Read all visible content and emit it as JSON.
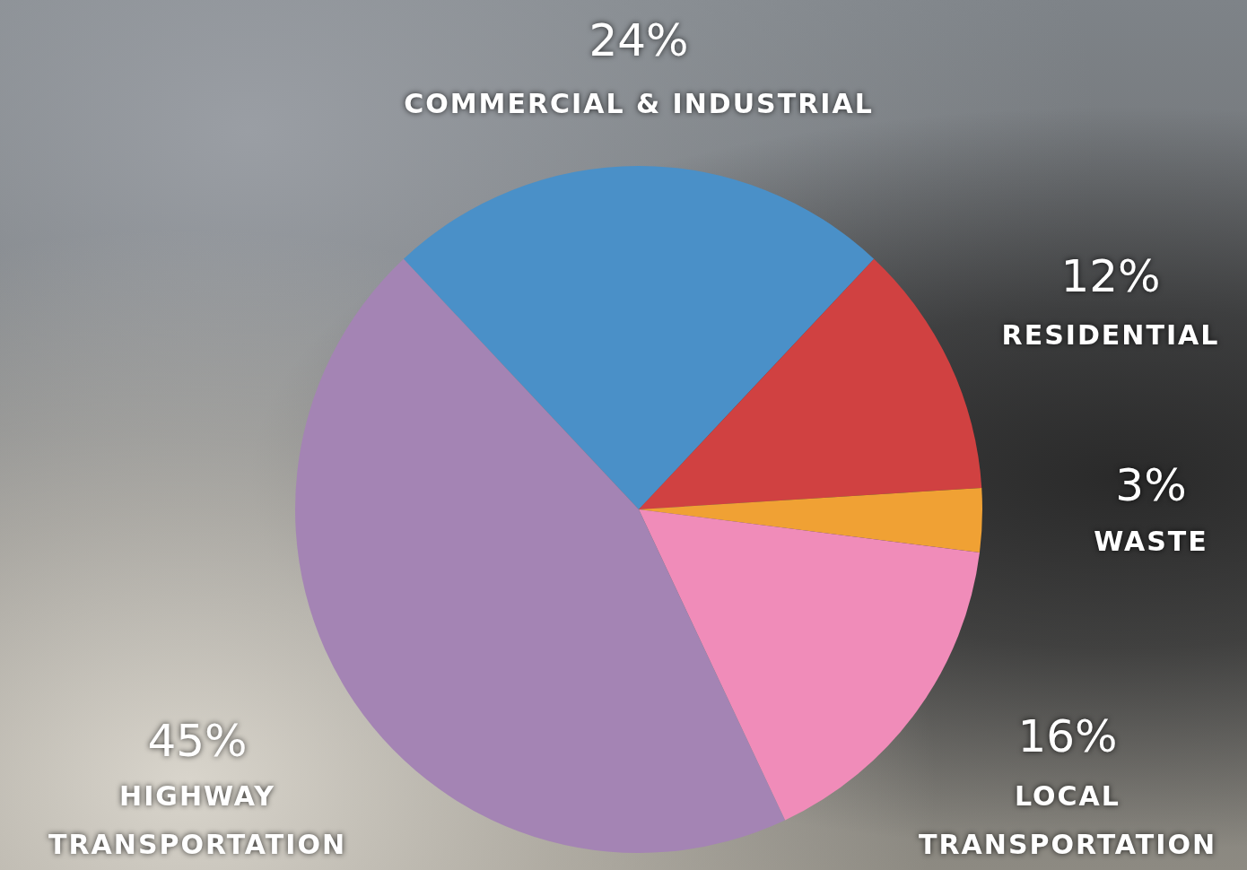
{
  "chart_data": {
    "type": "pie",
    "categories": [
      "COMMERCIAL & INDUSTRIAL",
      "RESIDENTIAL",
      "WASTE",
      "LOCAL TRANSPORTATION",
      "HIGHWAY TRANSPORTATION"
    ],
    "values": [
      24,
      12,
      3,
      16,
      45
    ],
    "value_labels": [
      "24%",
      "12%",
      "3%",
      "16%",
      "45%"
    ],
    "colors": [
      "#4a90c8",
      "#d04141",
      "#f0a134",
      "#f08cb9",
      "#a484b4"
    ],
    "data_labels": true
  }
}
